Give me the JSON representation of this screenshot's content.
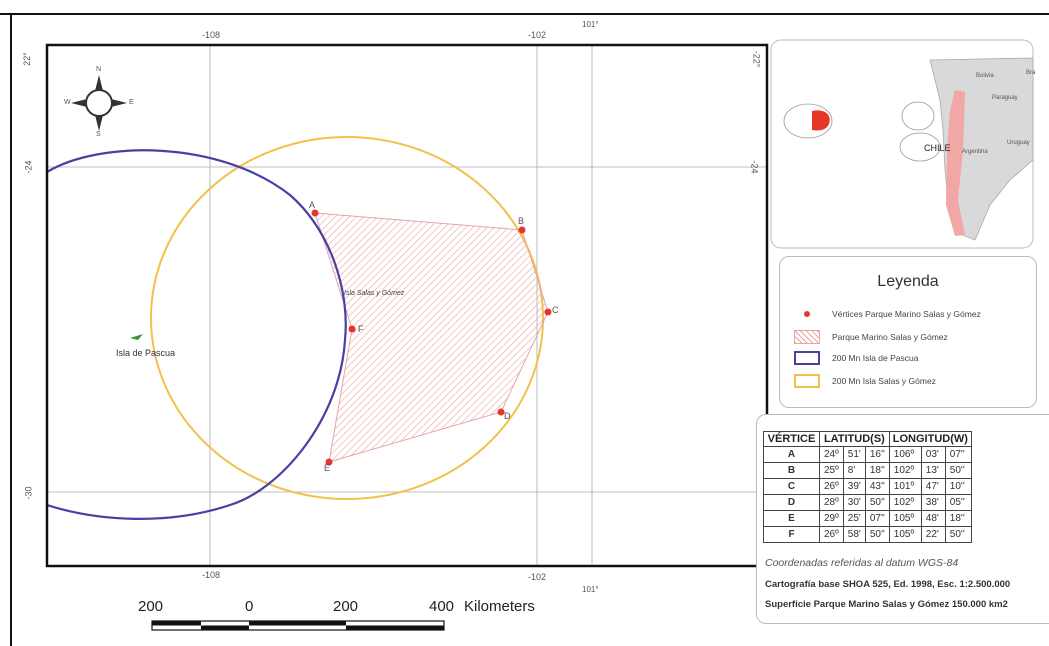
{
  "map": {
    "ticks_top": [
      "-108",
      "-102",
      "101°"
    ],
    "ticks_bottom": [
      "-108",
      "-102",
      "101°"
    ],
    "ticks_left": [
      "22°",
      "-24",
      "-30"
    ],
    "ticks_right": [
      "-22°",
      "-24"
    ],
    "compass_labels": {
      "n": "N",
      "s": "S",
      "e": "E",
      "w": "W"
    },
    "island_label": "Isla de Pascua",
    "salas_label": "Isla Salas y Gómez",
    "vertex_labels": [
      "A",
      "B",
      "C",
      "D",
      "E",
      "F"
    ],
    "colors": {
      "park_red": "#e8352a",
      "hatch": "#e9a3a3",
      "pascua_line": "#4b3fa6",
      "salas_line": "#f2c14a",
      "island": "#2e9a3a"
    }
  },
  "inset": {
    "labels": {
      "chile": "CHILE",
      "argentina": "Argentina",
      "bolivia": "Bolivia",
      "paraguay": "Paraguay",
      "uruguay": "Uruguay",
      "brasil": "Bra"
    }
  },
  "legend": {
    "title": "Leyenda",
    "items": [
      "Vértices Parque Marino Salas y Gómez",
      "Parque Marino Salas y Gómez",
      "200 Mn Isla de Pascua",
      "200 Mn Isla Salas y Gómez"
    ]
  },
  "table": {
    "headers": [
      "VÉRTICE",
      "LATITUD(S)",
      "LONGITUD(W)"
    ],
    "rows": [
      [
        "A",
        "24º",
        "51'",
        "16''",
        "106º",
        "03'",
        "07''"
      ],
      [
        "B",
        "25º",
        "8'",
        "18''",
        "102º",
        "13'",
        "50''"
      ],
      [
        "C",
        "26º",
        "39'",
        "43''",
        "101º",
        "47'",
        "10''"
      ],
      [
        "D",
        "28º",
        "30'",
        "50''",
        "102º",
        "38'",
        "05''"
      ],
      [
        "E",
        "29º",
        "25'",
        "07''",
        "105º",
        "48'",
        "18''"
      ],
      [
        "F",
        "26º",
        "58'",
        "50''",
        "105º",
        "22'",
        "50''"
      ]
    ],
    "datum_note": "Coordenadas referidas al datum WGS-84",
    "cartography_note": "Cartografía base SHOA 525, Ed. 1998, Esc. 1:2.500.000",
    "surface_note": "Superficie Parque Marino Salas y Gómez 150.000 km2"
  },
  "scalebar": {
    "labels": [
      "200",
      "0",
      "200",
      "400"
    ],
    "unit": "Kilometers"
  }
}
